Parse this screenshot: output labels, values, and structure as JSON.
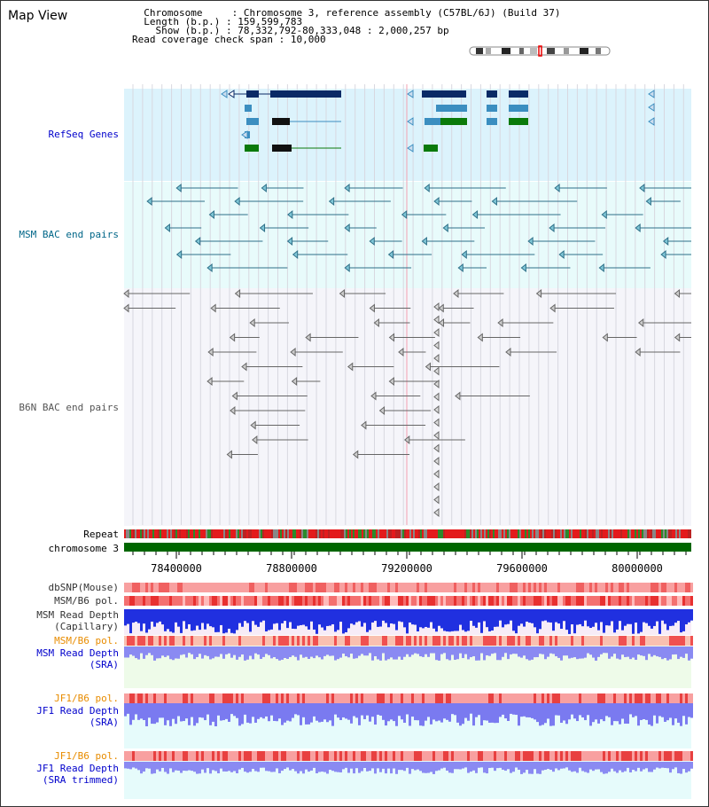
{
  "view": {
    "title": "Map View",
    "chromosome_key": "Chromosome",
    "chromosome_value": "Chromosome 3, reference assembly (C57BL/6J) (Build 37)",
    "length_key": "Length (b.p.)",
    "length_value": "159,599,783",
    "show_key": "Show (b.p.)",
    "show_value": "78,332,792-80,333,048 : 2,000,257 bp",
    "coverage_key": "Read coverage check span",
    "coverage_value": "10,000"
  },
  "tracks": {
    "refseq": "RefSeq Genes",
    "msm_bac": "MSM BAC end pairs",
    "b6n_bac": "B6N BAC end pairs",
    "repeat": "Repeat",
    "chromosome": "chromosome 3",
    "dbsnp": "dbSNP(Mouse)",
    "msm_b6_pol": "MSM/B6 pol.",
    "msm_depth_cap_1": "MSM Read Depth",
    "msm_depth_cap_2": "(Capillary)",
    "msm_b6_pol_sra": "MSM/B6 pol.",
    "msm_depth_sra_1": "MSM Read Depth",
    "msm_depth_sra_2": "(SRA)",
    "jf1_b6_pol": "JF1/B6 pol.",
    "jf1_depth_1": "JF1 Read Depth",
    "jf1_depth_2": "(SRA)",
    "jf1_b6_pol_trim": "JF1/B6 pol.",
    "jf1_trim_1": "JF1 Read Depth",
    "jf1_trim_2": "(SRA trimmed)"
  },
  "axis": {
    "ticks": [
      "78400000",
      "78800000",
      "79200000",
      "79600000",
      "80000000"
    ]
  },
  "colors": {
    "refseq_bg": "#dcf3fc",
    "msm_bg": "#e8fbfb",
    "b6n_bg": "#f5f5fa",
    "gene_dark": "#0a2a66",
    "gene_mid": "#3b8ec0",
    "gene_green": "#0a7a0a",
    "msm_feature": "#2e6f88",
    "b6n_feature": "#666666",
    "chromosome_bar": "#006600",
    "label_blue": "#0000cc",
    "label_teal": "#006688",
    "label_orange": "#e88c00"
  }
}
